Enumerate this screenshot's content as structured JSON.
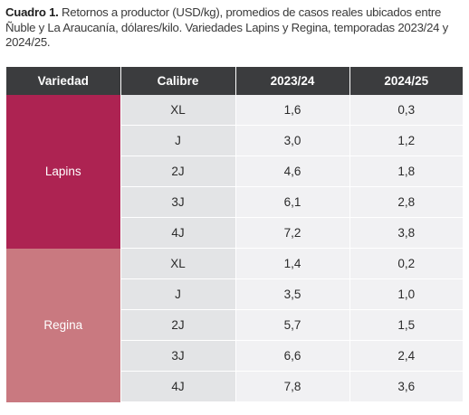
{
  "caption": {
    "label": "Cuadro 1.",
    "text": " Retornos a productor (USD/kg), promedios de casos reales ubicados entre Ñuble y La Araucanía, dólares/kilo. Variedades Lapins y Regina, temporadas 2023/24 y 2024/25."
  },
  "table": {
    "headers": [
      "Variedad",
      "Calibre",
      "2023/24",
      "2024/25"
    ],
    "groups": [
      {
        "variety": "Lapins",
        "rows": [
          {
            "calibre": "XL",
            "y2023_24": "1,6",
            "y2024_25": "0,3"
          },
          {
            "calibre": "J",
            "y2023_24": "3,0",
            "y2024_25": "1,2"
          },
          {
            "calibre": "2J",
            "y2023_24": "4,6",
            "y2024_25": "1,8"
          },
          {
            "calibre": "3J",
            "y2023_24": "6,1",
            "y2024_25": "2,8"
          },
          {
            "calibre": "4J",
            "y2023_24": "7,2",
            "y2024_25": "3,8"
          }
        ]
      },
      {
        "variety": "Regina",
        "rows": [
          {
            "calibre": "XL",
            "y2023_24": "1,4",
            "y2024_25": "0,2"
          },
          {
            "calibre": "J",
            "y2023_24": "3,5",
            "y2024_25": "1,0"
          },
          {
            "calibre": "2J",
            "y2023_24": "5,7",
            "y2024_25": "1,5"
          },
          {
            "calibre": "3J",
            "y2023_24": "6,6",
            "y2024_25": "2,4"
          },
          {
            "calibre": "4J",
            "y2023_24": "7,8",
            "y2024_25": "3,6"
          }
        ]
      }
    ]
  },
  "colors": {
    "header_bg": "#3b3c3e",
    "lapins": "#ad2352",
    "regina": "#c97980",
    "calibre_bg": "#e3e4e6",
    "value_bg": "#f1f1f3"
  }
}
